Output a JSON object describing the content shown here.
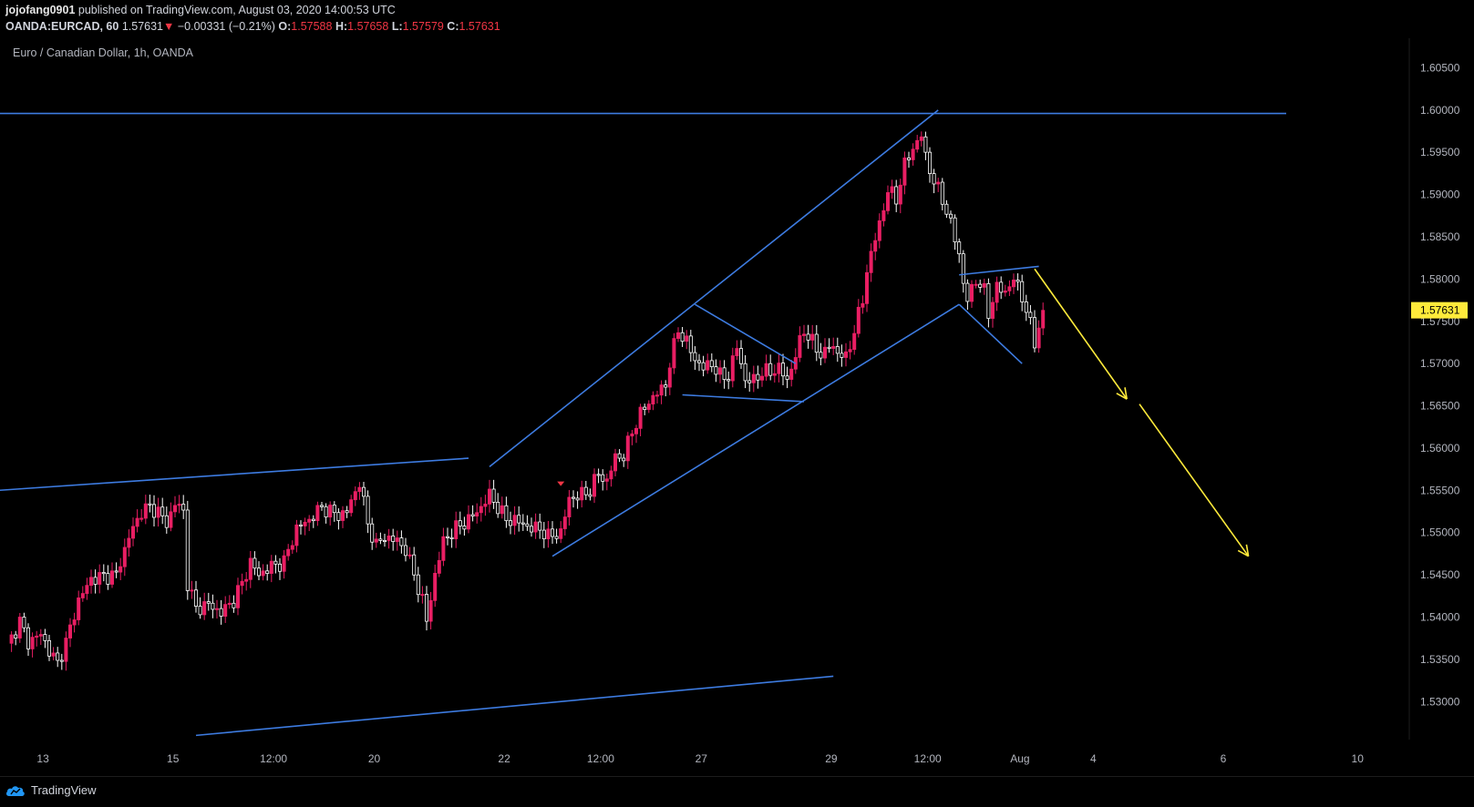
{
  "header": {
    "author": "jojofang0901",
    "published_text": "published on TradingView.com, August 03, 2020 14:00:53 UTC",
    "symbol": "OANDA:EURCAD, 60",
    "price": "1.57631",
    "change": "−0.00331 (−0.21%)",
    "open_label": "O:",
    "open": "1.57588",
    "high_label": "H:",
    "high": "1.57658",
    "low_label": "L:",
    "low": "1.57579",
    "close_label": "C:",
    "close": "1.57631"
  },
  "footer": {
    "brand": "TradingView"
  },
  "chart_data": {
    "type": "candlestick",
    "title": "Euro / Canadian Dollar, 1h, OANDA",
    "x_ticks": [
      "13",
      "15",
      "12:00",
      "20",
      "22",
      "12:00",
      "27",
      "29",
      "12:00",
      "Aug",
      "4",
      "6",
      "10"
    ],
    "y_ticks": [
      "1.60500",
      "1.60000",
      "1.59500",
      "1.59000",
      "1.58500",
      "1.58000",
      "1.57500",
      "1.57000",
      "1.56500",
      "1.56000",
      "1.55500",
      "1.55000",
      "1.54500",
      "1.54000",
      "1.53500",
      "1.53000"
    ],
    "y_values": [
      1.605,
      1.6,
      1.595,
      1.59,
      1.585,
      1.58,
      1.575,
      1.57,
      1.565,
      1.56,
      1.555,
      1.55,
      1.545,
      1.54,
      1.535,
      1.53
    ],
    "ylim": [
      1.5255,
      1.6085
    ],
    "last_price_label": "1.57631",
    "last_price": 1.57631,
    "colors": {
      "up": "#e91e63",
      "down": "#ffffff",
      "trendline": "#3d7be0",
      "projection": "#ffeb3b",
      "price_tag": "#ffeb3b",
      "axis_text": "#b2b5be"
    },
    "price_path": [
      [
        0,
        1.5365
      ],
      [
        3,
        1.5395
      ],
      [
        5,
        1.537
      ],
      [
        8,
        1.538
      ],
      [
        10,
        1.536
      ],
      [
        12,
        1.5345
      ],
      [
        14,
        1.537
      ],
      [
        17,
        1.542
      ],
      [
        20,
        1.5445
      ],
      [
        23,
        1.5448
      ],
      [
        26,
        1.545
      ],
      [
        29,
        1.5495
      ],
      [
        32,
        1.5525
      ],
      [
        34,
        1.553
      ],
      [
        36,
        1.5525
      ],
      [
        38,
        1.551
      ],
      [
        40,
        1.5535
      ],
      [
        42,
        1.5525
      ],
      [
        43,
        1.544
      ],
      [
        45,
        1.541
      ],
      [
        48,
        1.5415
      ],
      [
        51,
        1.5405
      ],
      [
        54,
        1.542
      ],
      [
        56,
        1.544
      ],
      [
        58,
        1.5465
      ],
      [
        60,
        1.545
      ],
      [
        63,
        1.546
      ],
      [
        66,
        1.5465
      ],
      [
        69,
        1.5505
      ],
      [
        72,
        1.5515
      ],
      [
        75,
        1.553
      ],
      [
        77,
        1.5525
      ],
      [
        79,
        1.552
      ],
      [
        81,
        1.5525
      ],
      [
        84,
        1.556
      ],
      [
        86,
        1.551
      ],
      [
        88,
        1.5485
      ],
      [
        90,
        1.5495
      ],
      [
        93,
        1.549
      ],
      [
        95,
        1.548
      ],
      [
        97,
        1.545
      ],
      [
        99,
        1.542
      ],
      [
        100,
        1.5395
      ],
      [
        102,
        1.545
      ],
      [
        104,
        1.549
      ],
      [
        107,
        1.5505
      ],
      [
        110,
        1.5515
      ],
      [
        113,
        1.553
      ],
      [
        115,
        1.5545
      ],
      [
        117,
        1.553
      ],
      [
        119,
        1.5515
      ],
      [
        121,
        1.5515
      ],
      [
        123,
        1.551
      ],
      [
        125,
        1.5505
      ],
      [
        127,
        1.5505
      ],
      [
        129,
        1.5495
      ],
      [
        132,
        1.55
      ],
      [
        134,
        1.554
      ],
      [
        137,
        1.5545
      ],
      [
        139,
        1.555
      ],
      [
        141,
        1.557
      ],
      [
        143,
        1.556
      ],
      [
        145,
        1.559
      ],
      [
        147,
        1.559
      ],
      [
        149,
        1.562
      ],
      [
        151,
        1.564
      ],
      [
        153,
        1.5655
      ],
      [
        155,
        1.5665
      ],
      [
        157,
        1.5675
      ],
      [
        158,
        1.57
      ],
      [
        160,
        1.574
      ],
      [
        162,
        1.5725
      ],
      [
        164,
        1.5705
      ],
      [
        166,
        1.5695
      ],
      [
        168,
        1.57
      ],
      [
        170,
        1.5685
      ],
      [
        172,
        1.5685
      ],
      [
        174,
        1.572
      ],
      [
        176,
        1.568
      ],
      [
        178,
        1.568
      ],
      [
        180,
        1.569
      ],
      [
        182,
        1.569
      ],
      [
        184,
        1.5695
      ],
      [
        186,
        1.568
      ],
      [
        188,
        1.571
      ],
      [
        190,
        1.574
      ],
      [
        192,
        1.5725
      ],
      [
        194,
        1.571
      ],
      [
        196,
        1.572
      ],
      [
        198,
        1.5715
      ],
      [
        200,
        1.5705
      ],
      [
        202,
        1.574
      ],
      [
        204,
        1.5775
      ],
      [
        205,
        1.581
      ],
      [
        206,
        1.583
      ],
      [
        208,
        1.5865
      ],
      [
        210,
        1.5905
      ],
      [
        212,
        1.5895
      ],
      [
        214,
        1.5935
      ],
      [
        216,
        1.5955
      ],
      [
        218,
        1.597
      ],
      [
        219,
        1.5945
      ],
      [
        221,
        1.5915
      ],
      [
        223,
        1.5895
      ],
      [
        225,
        1.5865
      ],
      [
        227,
        1.583
      ],
      [
        228,
        1.5795
      ],
      [
        229,
        1.5775
      ],
      [
        231,
        1.58
      ],
      [
        233,
        1.5785
      ],
      [
        234,
        1.576
      ],
      [
        236,
        1.579
      ],
      [
        238,
        1.5785
      ],
      [
        240,
        1.58
      ],
      [
        242,
        1.578
      ],
      [
        244,
        1.5745
      ],
      [
        245,
        1.5725
      ],
      [
        247,
        1.5763
      ]
    ],
    "trendlines": [
      {
        "name": "resistance-horizontal",
        "points": [
          [
            -2,
            1.5996
          ],
          [
            305,
            1.5996
          ]
        ]
      },
      {
        "name": "channel-upper",
        "points": [
          [
            115,
            1.5578
          ],
          [
            222,
            1.6
          ]
        ]
      },
      {
        "name": "channel-lower",
        "points": [
          [
            130,
            1.5472
          ],
          [
            227,
            1.577
          ]
        ]
      },
      {
        "name": "flag-upper",
        "points": [
          [
            164,
            1.577
          ],
          [
            188,
            1.57
          ]
        ]
      },
      {
        "name": "flag-lower",
        "points": [
          [
            161,
            1.5663
          ],
          [
            190,
            1.5655
          ]
        ]
      },
      {
        "name": "wedge-upper",
        "points": [
          [
            227,
            1.5805
          ],
          [
            246,
            1.5815
          ]
        ]
      },
      {
        "name": "wedge-lower",
        "points": [
          [
            227,
            1.577
          ],
          [
            242,
            1.57
          ]
        ]
      },
      {
        "name": "lower-support-line",
        "points": [
          [
            -2,
            1.555
          ],
          [
            110,
            1.5588
          ]
        ]
      },
      {
        "name": "bottom-line",
        "points": [
          [
            45,
            1.526
          ],
          [
            197,
            1.533
          ]
        ]
      }
    ],
    "projection_arrows": [
      {
        "name": "projection-arrow-1",
        "points": [
          [
            245,
            1.5812
          ],
          [
            267,
            1.5658
          ]
        ]
      },
      {
        "name": "projection-arrow-2",
        "points": [
          [
            270,
            1.5652
          ],
          [
            296,
            1.5472
          ]
        ]
      }
    ]
  }
}
